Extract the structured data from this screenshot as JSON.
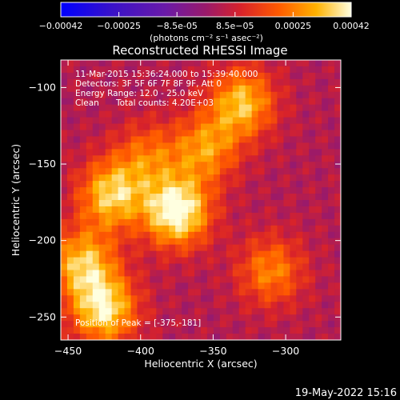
{
  "chart_data": {
    "type": "heatmap",
    "title": "Reconstructed RHESSI Image",
    "xlabel": "Heliocentric X (arcsec)",
    "ylabel": "Heliocentric Y (arcsec)",
    "xlim": [
      -455,
      -262
    ],
    "ylim": [
      -265,
      -82
    ],
    "xticks": [
      -450,
      -400,
      -350,
      -300
    ],
    "yticks": [
      -100,
      -150,
      -200,
      -250
    ],
    "colorbar": {
      "ticks": [
        "-0.00042",
        "-0.00025",
        "-8.5e-05",
        "8.5e-05",
        "0.00025",
        "0.00042"
      ],
      "unit": "(photons cm⁻² s⁻¹ asec⁻²)",
      "range": [
        -0.00042,
        0.00042
      ]
    },
    "peak_position": [
      -375,
      -181
    ],
    "sources": [
      {
        "x": -375,
        "y": -181,
        "intensity": 0.00042
      },
      {
        "x": -420,
        "y": -170,
        "intensity": 0.00032
      },
      {
        "x": -440,
        "y": -215,
        "intensity": 0.0003
      },
      {
        "x": -425,
        "y": -245,
        "intensity": 0.00035
      },
      {
        "x": -330,
        "y": -110,
        "intensity": 0.0003
      },
      {
        "x": -355,
        "y": -140,
        "intensity": 0.00024
      },
      {
        "x": -310,
        "y": -220,
        "intensity": 0.00022
      },
      {
        "x": -395,
        "y": -145,
        "intensity": 0.00018
      }
    ]
  },
  "annotations": {
    "time_range": "11-Mar-2015 15:36:24.000 to 15:39:40.000",
    "detectors": "Detectors: 3F 5F 6F 7F 8F 9F, Att 0",
    "energy_range": "Energy Range: 12.0 - 25.0 keV",
    "algorithm": "Clean",
    "total_counts": "Total counts: 4.20E+03",
    "peak": "Position of Peak = [-375,-181]"
  },
  "footer": {
    "timestamp": "19-May-2022 15:16"
  }
}
